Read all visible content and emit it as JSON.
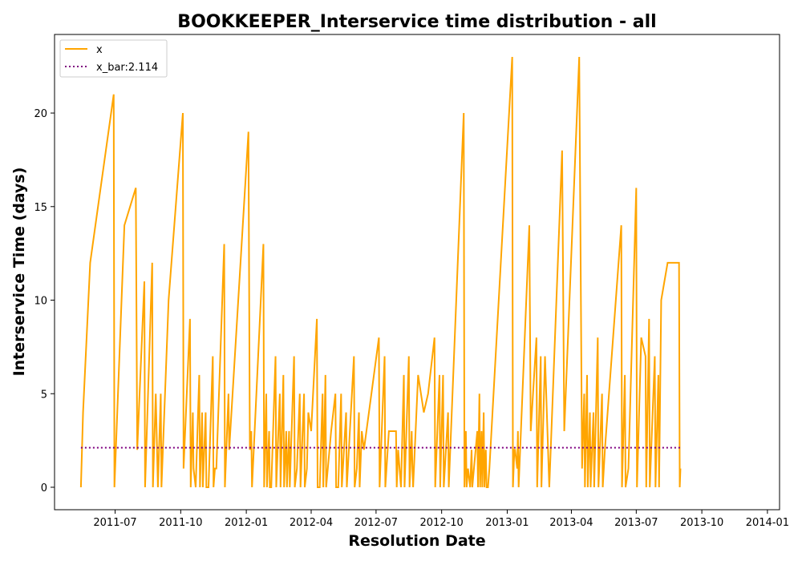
{
  "chart_data": {
    "type": "line",
    "title": "BOOKKEEPER_Interservice time distribution - all",
    "xlabel": "Resolution Date",
    "ylabel": "Interservice Time (days)",
    "x_ticks": [
      "2011-07",
      "2011-10",
      "2012-01",
      "2012-04",
      "2012-07",
      "2012-10",
      "2013-01",
      "2013-04",
      "2013-07",
      "2013-10",
      "2014-01"
    ],
    "y_ticks": [
      "0",
      "5",
      "10",
      "15",
      "20"
    ],
    "xlim": [
      "2011-04-07",
      "2014-01-18"
    ],
    "ylim": [
      -1.2,
      24.2
    ],
    "legend_position": "top-left",
    "colors": {
      "x": "#FFA500",
      "x_bar": "#800080"
    },
    "series": [
      {
        "name": "x",
        "style": "solid",
        "points": [
          [
            "2011-05-14",
            0
          ],
          [
            "2011-05-17",
            4
          ],
          [
            "2011-05-27",
            12
          ],
          [
            "2011-06-29",
            21
          ],
          [
            "2011-06-30",
            0
          ],
          [
            "2011-07-14",
            14
          ],
          [
            "2011-07-30",
            16
          ],
          [
            "2011-08-01",
            2
          ],
          [
            "2011-08-11",
            11
          ],
          [
            "2011-08-12",
            0
          ],
          [
            "2011-08-22",
            12
          ],
          [
            "2011-08-23",
            0
          ],
          [
            "2011-08-27",
            5
          ],
          [
            "2011-08-30",
            0
          ],
          [
            "2011-09-03",
            5
          ],
          [
            "2011-09-04",
            0
          ],
          [
            "2011-09-14",
            10
          ],
          [
            "2011-10-04",
            20
          ],
          [
            "2011-10-05",
            1
          ],
          [
            "2011-10-14",
            9
          ],
          [
            "2011-10-15",
            0
          ],
          [
            "2011-10-18",
            4
          ],
          [
            "2011-10-19",
            1
          ],
          [
            "2011-10-22",
            0
          ],
          [
            "2011-10-27",
            6
          ],
          [
            "2011-10-28",
            0
          ],
          [
            "2011-10-31",
            4
          ],
          [
            "2011-11-01",
            0
          ],
          [
            "2011-11-05",
            4
          ],
          [
            "2011-11-06",
            0
          ],
          [
            "2011-11-09",
            0
          ],
          [
            "2011-11-15",
            7
          ],
          [
            "2011-11-16",
            0
          ],
          [
            "2011-11-18",
            1
          ],
          [
            "2011-11-20",
            1
          ],
          [
            "2011-12-01",
            13
          ],
          [
            "2011-12-02",
            0
          ],
          [
            "2011-12-07",
            5
          ],
          [
            "2011-12-08",
            2
          ],
          [
            "2012-01-04",
            19
          ],
          [
            "2012-01-06",
            2
          ],
          [
            "2012-01-08",
            3
          ],
          [
            "2012-01-09",
            0
          ],
          [
            "2012-01-25",
            13
          ],
          [
            "2012-01-26",
            0
          ],
          [
            "2012-01-29",
            5
          ],
          [
            "2012-01-30",
            0
          ],
          [
            "2012-02-02",
            3
          ],
          [
            "2012-02-03",
            0
          ],
          [
            "2012-02-05",
            0
          ],
          [
            "2012-02-11",
            7
          ],
          [
            "2012-02-12",
            0
          ],
          [
            "2012-02-17",
            5
          ],
          [
            "2012-02-18",
            0
          ],
          [
            "2012-02-22",
            6
          ],
          [
            "2012-02-23",
            0
          ],
          [
            "2012-02-26",
            3
          ],
          [
            "2012-02-27",
            0
          ],
          [
            "2012-03-01",
            3
          ],
          [
            "2012-03-02",
            0
          ],
          [
            "2012-03-08",
            7
          ],
          [
            "2012-03-09",
            0
          ],
          [
            "2012-03-12",
            1
          ],
          [
            "2012-03-16",
            5
          ],
          [
            "2012-03-17",
            0
          ],
          [
            "2012-03-22",
            5
          ],
          [
            "2012-03-23",
            0
          ],
          [
            "2012-03-26",
            1
          ],
          [
            "2012-03-28",
            4
          ],
          [
            "2012-04-01",
            3
          ],
          [
            "2012-04-09",
            9
          ],
          [
            "2012-04-10",
            0
          ],
          [
            "2012-04-13",
            0
          ],
          [
            "2012-04-17",
            5
          ],
          [
            "2012-04-18",
            0
          ],
          [
            "2012-04-21",
            6
          ],
          [
            "2012-04-22",
            0
          ],
          [
            "2012-04-29",
            3
          ],
          [
            "2012-05-05",
            5
          ],
          [
            "2012-05-06",
            0
          ],
          [
            "2012-05-09",
            0
          ],
          [
            "2012-05-13",
            5
          ],
          [
            "2012-05-14",
            0
          ],
          [
            "2012-05-20",
            4
          ],
          [
            "2012-05-21",
            0
          ],
          [
            "2012-05-31",
            7
          ],
          [
            "2012-06-01",
            0
          ],
          [
            "2012-06-04",
            1
          ],
          [
            "2012-06-07",
            4
          ],
          [
            "2012-06-08",
            0
          ],
          [
            "2012-06-11",
            3
          ],
          [
            "2012-06-14",
            2
          ],
          [
            "2012-07-05",
            8
          ],
          [
            "2012-07-06",
            0
          ],
          [
            "2012-07-13",
            7
          ],
          [
            "2012-07-14",
            0
          ],
          [
            "2012-07-19",
            3
          ],
          [
            "2012-07-29",
            3
          ],
          [
            "2012-07-30",
            0
          ],
          [
            "2012-08-01",
            2
          ],
          [
            "2012-08-05",
            0
          ],
          [
            "2012-08-09",
            6
          ],
          [
            "2012-08-10",
            0
          ],
          [
            "2012-08-16",
            7
          ],
          [
            "2012-08-17",
            0
          ],
          [
            "2012-08-20",
            3
          ],
          [
            "2012-08-21",
            1
          ],
          [
            "2012-08-22",
            0
          ],
          [
            "2012-08-29",
            6
          ],
          [
            "2012-09-06",
            4
          ],
          [
            "2012-09-12",
            5
          ],
          [
            "2012-09-21",
            8
          ],
          [
            "2012-09-22",
            0
          ],
          [
            "2012-09-28",
            6
          ],
          [
            "2012-09-29",
            0
          ],
          [
            "2012-10-03",
            6
          ],
          [
            "2012-10-04",
            0
          ],
          [
            "2012-10-10",
            4
          ],
          [
            "2012-10-11",
            0
          ],
          [
            "2012-11-01",
            20
          ],
          [
            "2012-11-02",
            0
          ],
          [
            "2012-11-04",
            3
          ],
          [
            "2012-11-05",
            0
          ],
          [
            "2012-11-07",
            1
          ],
          [
            "2012-11-10",
            0
          ],
          [
            "2012-11-12",
            2
          ],
          [
            "2012-11-13",
            0
          ],
          [
            "2012-11-20",
            3
          ],
          [
            "2012-11-21",
            0
          ],
          [
            "2012-11-23",
            5
          ],
          [
            "2012-11-24",
            0
          ],
          [
            "2012-11-26",
            3
          ],
          [
            "2012-11-27",
            0
          ],
          [
            "2012-11-29",
            4
          ],
          [
            "2012-11-30",
            0
          ],
          [
            "2012-12-02",
            2
          ],
          [
            "2012-12-03",
            0
          ],
          [
            "2012-12-05",
            0
          ],
          [
            "2012-12-07",
            1
          ],
          [
            "2013-01-08",
            23
          ],
          [
            "2013-01-09",
            0
          ],
          [
            "2013-01-11",
            2
          ],
          [
            "2013-01-12",
            2
          ],
          [
            "2013-01-15",
            1
          ],
          [
            "2013-01-16",
            3
          ],
          [
            "2013-01-17",
            0
          ],
          [
            "2013-02-01",
            14
          ],
          [
            "2013-02-03",
            3
          ],
          [
            "2013-02-11",
            8
          ],
          [
            "2013-02-12",
            0
          ],
          [
            "2013-02-17",
            7
          ],
          [
            "2013-02-18",
            0
          ],
          [
            "2013-02-23",
            7
          ],
          [
            "2013-03-01",
            0
          ],
          [
            "2013-03-19",
            18
          ],
          [
            "2013-03-22",
            3
          ],
          [
            "2013-04-12",
            23
          ],
          [
            "2013-04-16",
            1
          ],
          [
            "2013-04-19",
            5
          ],
          [
            "2013-04-20",
            0
          ],
          [
            "2013-04-23",
            6
          ],
          [
            "2013-04-24",
            0
          ],
          [
            "2013-04-27",
            4
          ],
          [
            "2013-04-28",
            0
          ],
          [
            "2013-05-02",
            4
          ],
          [
            "2013-05-03",
            0
          ],
          [
            "2013-05-08",
            8
          ],
          [
            "2013-05-09",
            0
          ],
          [
            "2013-05-14",
            5
          ],
          [
            "2013-05-15",
            0
          ],
          [
            "2013-05-18",
            2
          ],
          [
            "2013-06-10",
            14
          ],
          [
            "2013-06-11",
            0
          ],
          [
            "2013-06-15",
            6
          ],
          [
            "2013-06-16",
            0
          ],
          [
            "2013-06-20",
            1
          ],
          [
            "2013-07-01",
            16
          ],
          [
            "2013-07-02",
            0
          ],
          [
            "2013-07-08",
            8
          ],
          [
            "2013-07-14",
            7
          ],
          [
            "2013-07-15",
            0
          ],
          [
            "2013-07-19",
            9
          ],
          [
            "2013-07-20",
            0
          ],
          [
            "2013-07-27",
            7
          ],
          [
            "2013-07-28",
            0
          ],
          [
            "2013-08-01",
            6
          ],
          [
            "2013-08-02",
            0
          ],
          [
            "2013-08-05",
            10
          ],
          [
            "2013-08-14",
            12
          ],
          [
            "2013-08-30",
            12
          ],
          [
            "2013-08-31",
            0
          ],
          [
            "2013-09-01",
            1
          ]
        ]
      },
      {
        "name": "x_bar:2.114",
        "style": "dotted",
        "value": 2.114,
        "x_range": [
          "2011-05-14",
          "2013-09-01"
        ]
      }
    ]
  }
}
